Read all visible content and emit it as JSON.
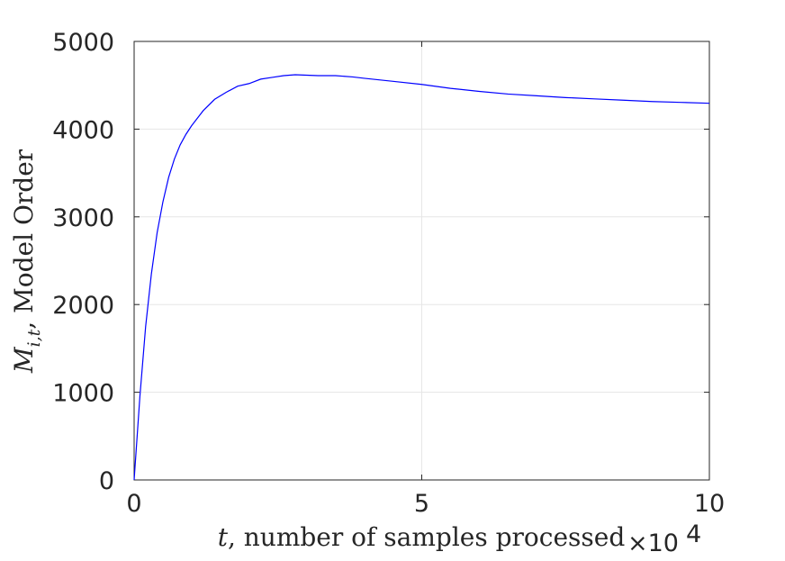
{
  "chart_data": {
    "type": "line",
    "xlabel_var": "t",
    "xlabel_text": ", number of samples processed",
    "ylabel_var": "M",
    "ylabel_sub": "i,t",
    "ylabel_text": ", Model Order",
    "x_multiplier_base": "×10",
    "x_multiplier_exp": "4",
    "xlim": [
      0,
      10
    ],
    "ylim": [
      0,
      5000
    ],
    "xticks": [
      "0",
      "5",
      "10"
    ],
    "yticks": [
      "0",
      "1000",
      "2000",
      "3000",
      "4000",
      "5000"
    ],
    "grid": true,
    "line_color": "#0000ff",
    "series": [
      {
        "x": [
          0,
          0.1,
          0.2,
          0.3,
          0.4,
          0.5,
          0.6,
          0.7,
          0.8,
          0.9,
          1.0,
          1.2,
          1.4,
          1.6,
          1.8,
          2.0,
          2.2,
          2.4,
          2.6,
          2.8,
          3.0,
          3.2,
          3.5,
          3.8,
          4.0,
          4.5,
          5.0,
          5.5,
          6.0,
          6.5,
          7.0,
          7.5,
          8.0,
          8.5,
          9.0,
          9.5,
          10.0
        ],
        "y": [
          0,
          950,
          1750,
          2350,
          2820,
          3170,
          3450,
          3660,
          3820,
          3940,
          4040,
          4210,
          4340,
          4420,
          4490,
          4520,
          4570,
          4590,
          4610,
          4620,
          4615,
          4610,
          4610,
          4595,
          4580,
          4545,
          4510,
          4465,
          4430,
          4400,
          4380,
          4360,
          4345,
          4330,
          4315,
          4305,
          4295
        ]
      }
    ]
  }
}
